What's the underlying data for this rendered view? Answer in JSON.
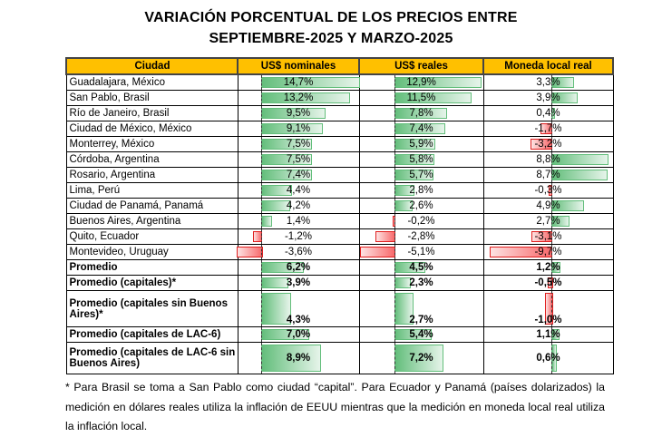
{
  "title": {
    "line1": "VARIACIÓN PORCENTUAL DE LOS PRECIOS ENTRE",
    "line2": "SEPTIEMBRE-2025 Y MARZO-2025"
  },
  "headers": [
    "Ciudad",
    "US$ nominales",
    "US$ reales",
    "Moneda local real"
  ],
  "rows": [
    {
      "city": "Guadalajara, México",
      "v": [
        "14,7%",
        "12,9%",
        "3,3%"
      ]
    },
    {
      "city": "San Pablo, Brasil",
      "v": [
        "13,2%",
        "11,5%",
        "3,9%"
      ]
    },
    {
      "city": "Río de Janeiro, Brasil",
      "v": [
        "9,5%",
        "7,8%",
        "0,4%"
      ]
    },
    {
      "city": "Ciudad de México, México",
      "v": [
        "9,1%",
        "7,4%",
        "-1,7%"
      ]
    },
    {
      "city": "Monterrey, México",
      "v": [
        "7,5%",
        "5,9%",
        "-3,2%"
      ]
    },
    {
      "city": "Córdoba, Argentina",
      "v": [
        "7,5%",
        "5,8%",
        "8,8%"
      ]
    },
    {
      "city": "Rosario, Argentina",
      "v": [
        "7,4%",
        "5,7%",
        "8,7%"
      ]
    },
    {
      "city": "Lima, Perú",
      "v": [
        "4,4%",
        "2,8%",
        "-0,3%"
      ]
    },
    {
      "city": "Ciudad de Panamá, Panamá",
      "v": [
        "4,2%",
        "2,6%",
        "4,9%"
      ]
    },
    {
      "city": "Buenos Aires, Argentina",
      "v": [
        "1,4%",
        "-0,2%",
        "2,7%"
      ]
    },
    {
      "city": "Quito, Ecuador",
      "v": [
        "-1,2%",
        "-2,8%",
        "-3,1%"
      ]
    },
    {
      "city": "Montevideo, Uruguay",
      "v": [
        "-3,6%",
        "-5,1%",
        "-9,7%"
      ]
    },
    {
      "city": "Promedio",
      "v": [
        "6,2%",
        "4,5%",
        "1,2%"
      ],
      "bold": true
    },
    {
      "city": "Promedio (capitales)*",
      "v": [
        "3,9%",
        "2,3%",
        "-0,5%"
      ],
      "bold": true
    },
    {
      "city": "Promedio (capitales sin Buenos Aires)*",
      "v": [
        "4,3%",
        "2,7%",
        "-1,0%"
      ],
      "bold": true,
      "tall": "tall"
    },
    {
      "city": "Promedio (capitales de LAC-6)",
      "v": [
        "7,0%",
        "5,4%",
        "1,1%"
      ],
      "bold": true
    },
    {
      "city": "Promedio (capitales de LAC-6 sin Buenos Aires)",
      "v": [
        "8,9%",
        "7,2%",
        "0,6%"
      ],
      "bold": true,
      "tall": "tall2"
    }
  ],
  "footnote": "* Para Brasil se toma a San Pablo como ciudad “capital”. Para Ecuador y Panamá (países dolarizados) la medición en dólares reales utiliza la inflación de EEUU mientras que la medición en moneda local real utiliza la inflación local.",
  "colors": {
    "header": "#ffc000",
    "positive_bar": "#63be7b",
    "negative_bar": "#f8696b"
  }
}
